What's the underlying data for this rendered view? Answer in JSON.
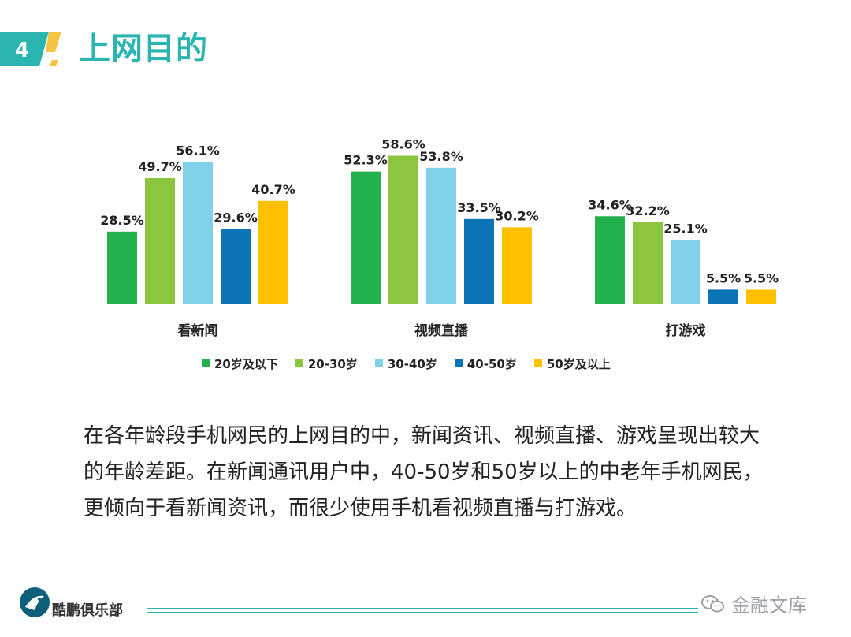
{
  "header": {
    "badge_number": "4",
    "title": "上网目的",
    "accent_color": "#2bb5b0",
    "badge_color": "#2bb5b0"
  },
  "chart_data": {
    "type": "bar",
    "categories": [
      "看新闻",
      "视频直播",
      "打游戏"
    ],
    "series": [
      {
        "name": "20岁及以下",
        "color": "#22b14c",
        "values": [
          28.5,
          52.3,
          34.6
        ],
        "labels": [
          "28.5%",
          "52.3%",
          "34.6%"
        ]
      },
      {
        "name": "20-30岁",
        "color": "#8cc63f",
        "values": [
          49.7,
          58.6,
          32.2
        ],
        "labels": [
          "49.7%",
          "58.6%",
          "32.2%"
        ]
      },
      {
        "name": "30-40岁",
        "color": "#7fd1e8",
        "values": [
          56.1,
          53.8,
          25.1
        ],
        "labels": [
          "56.1%",
          "53.8%",
          "25.1%"
        ]
      },
      {
        "name": "40-50岁",
        "color": "#0b74b7",
        "values": [
          29.6,
          33.5,
          5.5
        ],
        "labels": [
          "29.6%",
          "33.5%",
          "5.5%"
        ]
      },
      {
        "name": "50岁及以上",
        "color": "#ffc000",
        "values": [
          40.7,
          30.2,
          5.5
        ],
        "labels": [
          "40.7%",
          "30.2%",
          "5.5%"
        ]
      }
    ],
    "legend_position": "bottom",
    "grid": false
  },
  "body": {
    "paragraph": "在各年龄段手机网民的上网目的中，新闻资讯、视频直播、游戏呈现出较大的年龄差距。在新闻通讯用户中，40-50岁和50岁以上的中老年手机网民，更倾向于看新闻资讯，而很少使用手机看视频直播与打游戏。"
  },
  "footer": {
    "logo_text": "酷鹏俱乐部",
    "watermark_text": "金融文库"
  }
}
